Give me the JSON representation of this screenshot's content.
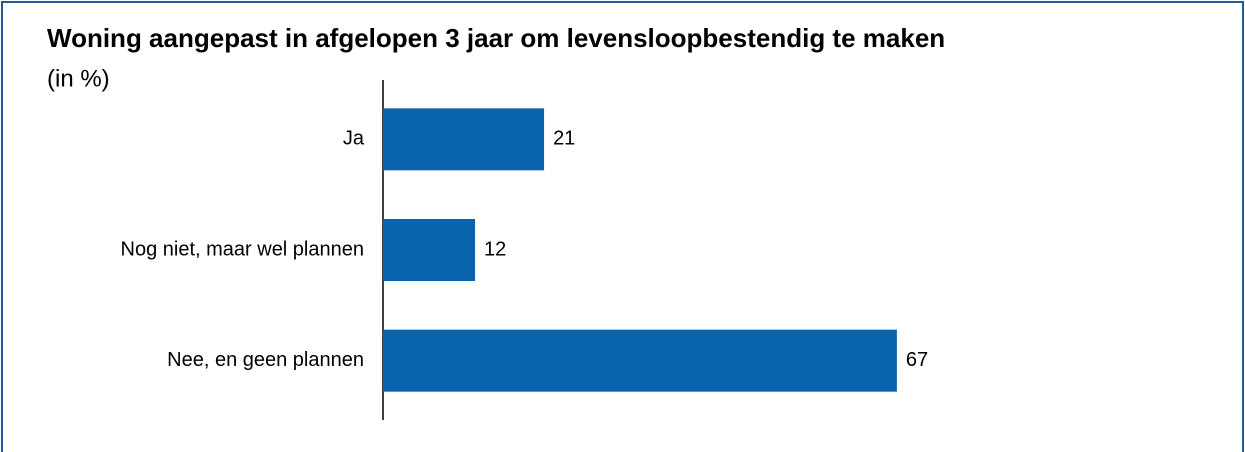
{
  "chart_data": {
    "type": "bar",
    "orientation": "horizontal",
    "title": "Woning aangepast in afgelopen 3 jaar om levensloopbestendig te maken",
    "subtitle": "(in %)",
    "categories": [
      "Ja",
      "Nog niet, maar wel plannen",
      "Nee, en geen plannen"
    ],
    "values": [
      21,
      12,
      67
    ],
    "color": "#0a64ad",
    "xlim": [
      0,
      100
    ]
  }
}
